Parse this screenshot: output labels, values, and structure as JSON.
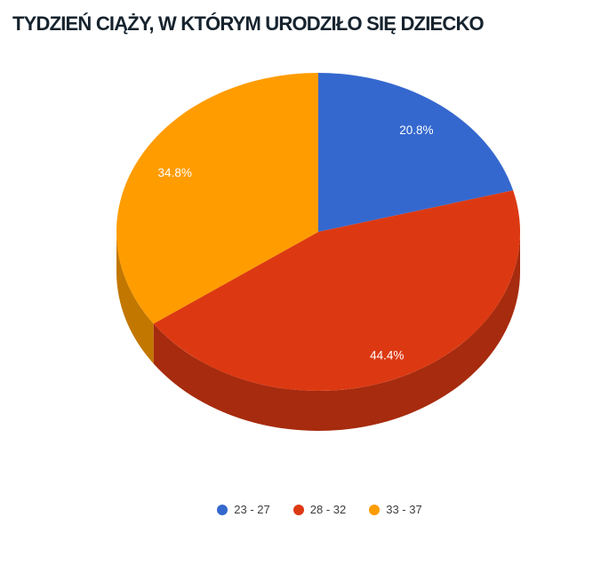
{
  "page": {
    "background": "#ffffff"
  },
  "chart_data": {
    "type": "pie",
    "is_3d": true,
    "title": "TYDZIEŃ CIĄŻY, W KTÓRYM URODZIŁO SIĘ DZIECKO",
    "categories": [
      "23 - 27",
      "28 - 32",
      "33 - 37"
    ],
    "values": [
      20.8,
      44.4,
      34.8
    ],
    "value_labels": [
      "20.8%",
      "44.4%",
      "34.8%"
    ],
    "colors": [
      "#3568CE",
      "#DC3912",
      "#FF9C00"
    ],
    "start_angle_deg": 0,
    "direction": "clockwise",
    "legend_position": "bottom",
    "title_color": "#16232e",
    "legend_text_color": "#3d3d3d",
    "slice_label_color": "#ffffff"
  }
}
